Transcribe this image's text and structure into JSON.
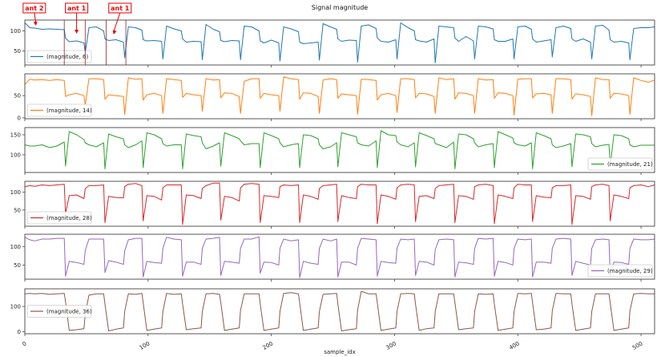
{
  "chart_data": {
    "type": "line",
    "title": "Signal magnitude",
    "xlabel": "sample_idx",
    "xlim": [
      0,
      511
    ],
    "xticks": [
      0,
      100,
      200,
      300,
      400,
      500
    ],
    "grid": false,
    "x": [
      0,
      4,
      8,
      14,
      20,
      26,
      32,
      33,
      36,
      42,
      48,
      49,
      52,
      58,
      64,
      65,
      68,
      74,
      80,
      81,
      84,
      90,
      95,
      96,
      99,
      105,
      111,
      112,
      115,
      121,
      127,
      128,
      131,
      137,
      143,
      144,
      147,
      153,
      158,
      159,
      162,
      168,
      174,
      175,
      178,
      184,
      190,
      191,
      194,
      200,
      206,
      207,
      210,
      216,
      222,
      223,
      226,
      232,
      238,
      239,
      242,
      248,
      253,
      254,
      257,
      263,
      269,
      270,
      273,
      279,
      285,
      286,
      289,
      295,
      301,
      302,
      305,
      311,
      316,
      317,
      320,
      326,
      332,
      333,
      336,
      342,
      348,
      349,
      352,
      358,
      364,
      365,
      368,
      374,
      380,
      381,
      384,
      390,
      396,
      397,
      400,
      406,
      411,
      412,
      415,
      421,
      427,
      428,
      431,
      437,
      443,
      444,
      447,
      453,
      459,
      460,
      463,
      469,
      474,
      475,
      478,
      484,
      490,
      491,
      494,
      500,
      506,
      511
    ],
    "panels": [
      {
        "name": "(magnitude, 6)",
        "color": "#1f77b4",
        "ylim": [
          15,
          127
        ],
        "yticks": [
          50,
          100
        ],
        "legend": "lower-left",
        "values": [
          120,
          108,
          107,
          104,
          105,
          104,
          103,
          82,
          73,
          75,
          70,
          45,
          108,
          110,
          100,
          80,
          76,
          78,
          72,
          33,
          110,
          108,
          102,
          78,
          75,
          76,
          74,
          30,
          112,
          105,
          100,
          80,
          72,
          74,
          73,
          28,
          116,
          104,
          98,
          76,
          73,
          76,
          75,
          28,
          112,
          110,
          100,
          75,
          70,
          77,
          70,
          25,
          110,
          105,
          98,
          72,
          68,
          70,
          72,
          27,
          118,
          110,
          104,
          80,
          74,
          77,
          76,
          22,
          112,
          115,
          106,
          82,
          74,
          72,
          78,
          30,
          120,
          108,
          100,
          78,
          75,
          72,
          80,
          20,
          112,
          110,
          108,
          82,
          74,
          86,
          75,
          30,
          112,
          110,
          105,
          78,
          74,
          74,
          80,
          30,
          110,
          112,
          104,
          80,
          72,
          75,
          78,
          35,
          108,
          112,
          106,
          80,
          74,
          80,
          72,
          30,
          112,
          114,
          102,
          78,
          72,
          74,
          70,
          28,
          106,
          108,
          108,
          110
        ]
      },
      {
        "name": "(magnitude, 14)",
        "color": "#ff7f0e",
        "ylim": [
          -2,
          99
        ],
        "yticks": [
          0,
          50
        ],
        "legend": "lower-left",
        "values": [
          75,
          87,
          85,
          86,
          84,
          86,
          84,
          48,
          52,
          55,
          50,
          28,
          88,
          88,
          86,
          42,
          52,
          50,
          48,
          7,
          90,
          87,
          88,
          40,
          52,
          55,
          50,
          10,
          88,
          86,
          84,
          46,
          55,
          52,
          50,
          15,
          88,
          85,
          86,
          45,
          56,
          55,
          48,
          10,
          82,
          88,
          88,
          44,
          55,
          52,
          50,
          15,
          92,
          88,
          86,
          42,
          56,
          55,
          48,
          10,
          85,
          88,
          86,
          44,
          54,
          52,
          50,
          8,
          87,
          86,
          84,
          40,
          52,
          55,
          50,
          12,
          88,
          88,
          86,
          45,
          55,
          54,
          48,
          10,
          90,
          86,
          88,
          42,
          56,
          55,
          50,
          10,
          88,
          85,
          86,
          44,
          56,
          55,
          50,
          6,
          87,
          88,
          88,
          45,
          54,
          55,
          52,
          10,
          88,
          88,
          86,
          42,
          54,
          52,
          48,
          5,
          90,
          86,
          86,
          44,
          55,
          54,
          50,
          8,
          90,
          84,
          80,
          85
        ]
      },
      {
        "name": "(magnitude, 21)",
        "color": "#2ca02c",
        "ylim": [
          56,
          168
        ],
        "yticks": [
          100,
          150
        ],
        "legend": "lower-right",
        "values": [
          125,
          122,
          122,
          125,
          118,
          122,
          132,
          72,
          158,
          150,
          138,
          130,
          125,
          120,
          130,
          65,
          152,
          145,
          140,
          125,
          118,
          125,
          135,
          68,
          155,
          150,
          140,
          128,
          122,
          125,
          125,
          65,
          152,
          148,
          145,
          130,
          115,
          122,
          130,
          72,
          155,
          148,
          140,
          135,
          125,
          128,
          128,
          68,
          155,
          148,
          140,
          130,
          120,
          125,
          128,
          68,
          150,
          148,
          140,
          125,
          115,
          120,
          130,
          70,
          155,
          150,
          145,
          130,
          125,
          122,
          135,
          68,
          160,
          150,
          148,
          132,
          125,
          120,
          130,
          70,
          155,
          148,
          140,
          128,
          125,
          118,
          132,
          65,
          152,
          150,
          140,
          130,
          120,
          125,
          128,
          68,
          158,
          150,
          142,
          130,
          125,
          122,
          130,
          65,
          155,
          148,
          140,
          125,
          118,
          122,
          128,
          70,
          152,
          150,
          145,
          128,
          120,
          124,
          126,
          72,
          150,
          148,
          140,
          125,
          120,
          124,
          124,
          124
        ]
      },
      {
        "name": "(magnitude, 28)",
        "color": "#d62728",
        "ylim": [
          5,
          130
        ],
        "yticks": [
          50,
          100
        ],
        "legend": "lower-left",
        "values": [
          115,
          118,
          116,
          120,
          118,
          120,
          122,
          40,
          90,
          92,
          82,
          110,
          118,
          118,
          120,
          15,
          88,
          85,
          84,
          115,
          122,
          124,
          118,
          20,
          90,
          88,
          78,
          112,
          120,
          120,
          120,
          10,
          92,
          90,
          82,
          110,
          118,
          125,
          125,
          22,
          88,
          85,
          75,
          112,
          122,
          124,
          122,
          15,
          90,
          88,
          85,
          115,
          120,
          118,
          120,
          15,
          92,
          88,
          80,
          110,
          118,
          120,
          122,
          18,
          90,
          85,
          82,
          115,
          122,
          120,
          120,
          12,
          92,
          88,
          80,
          112,
          120,
          122,
          120,
          18,
          88,
          90,
          82,
          110,
          118,
          120,
          122,
          15,
          90,
          88,
          80,
          115,
          120,
          122,
          118,
          12,
          92,
          88,
          82,
          112,
          122,
          120,
          120,
          18,
          90,
          86,
          84,
          112,
          118,
          118,
          120,
          10,
          90,
          88,
          80,
          115,
          120,
          122,
          118,
          20,
          92,
          88,
          82,
          112,
          118,
          120,
          115,
          120
        ]
      },
      {
        "name": "(magnitude, 29)",
        "color": "#9467bd",
        "ylim": [
          12,
          133
        ],
        "yticks": [
          50,
          100
        ],
        "legend": "lower-right",
        "values": [
          125,
          118,
          115,
          120,
          120,
          122,
          122,
          20,
          60,
          57,
          52,
          90,
          120,
          120,
          120,
          30,
          62,
          58,
          52,
          88,
          118,
          122,
          122,
          18,
          60,
          57,
          55,
          95,
          125,
          120,
          118,
          20,
          58,
          58,
          52,
          95,
          120,
          122,
          125,
          22,
          60,
          58,
          55,
          95,
          120,
          120,
          126,
          28,
          58,
          57,
          50,
          95,
          120,
          115,
          118,
          16,
          60,
          55,
          52,
          95,
          120,
          115,
          120,
          18,
          58,
          58,
          50,
          95,
          122,
          120,
          118,
          20,
          60,
          57,
          55,
          95,
          120,
          118,
          120,
          22,
          60,
          58,
          50,
          92,
          118,
          120,
          118,
          18,
          58,
          56,
          52,
          95,
          122,
          120,
          122,
          20,
          60,
          57,
          50,
          95,
          120,
          118,
          120,
          18,
          58,
          58,
          55,
          95,
          120,
          122,
          120,
          22,
          60,
          55,
          50,
          95,
          118,
          120,
          118,
          20,
          58,
          57,
          52,
          95,
          120,
          118,
          118,
          120
        ]
      },
      {
        "name": "(magnitude, 36)",
        "color": "#8c564b",
        "ylim": [
          -8,
          170
        ],
        "yticks": [
          0,
          100
        ],
        "legend": "center-left",
        "values": [
          150,
          152,
          150,
          152,
          148,
          150,
          152,
          120,
          5,
          8,
          12,
          70,
          145,
          150,
          150,
          110,
          3,
          10,
          15,
          80,
          150,
          148,
          152,
          115,
          5,
          10,
          15,
          80,
          152,
          148,
          150,
          110,
          8,
          12,
          15,
          80,
          150,
          152,
          148,
          115,
          5,
          10,
          15,
          85,
          150,
          150,
          150,
          110,
          5,
          10,
          15,
          80,
          152,
          155,
          150,
          115,
          5,
          10,
          15,
          80,
          148,
          150,
          152,
          110,
          3,
          8,
          12,
          85,
          160,
          150,
          150,
          115,
          5,
          10,
          15,
          80,
          150,
          152,
          150,
          110,
          5,
          12,
          15,
          80,
          150,
          150,
          150,
          115,
          8,
          12,
          15,
          80,
          150,
          148,
          150,
          110,
          5,
          10,
          15,
          80,
          152,
          150,
          152,
          115,
          8,
          10,
          15,
          82,
          152,
          150,
          150,
          110,
          5,
          10,
          15,
          80,
          150,
          150,
          150,
          115,
          5,
          10,
          15,
          82,
          150,
          152,
          150,
          150
        ]
      }
    ],
    "annotations": [
      {
        "text": "ant 2",
        "x": 9,
        "y": 113
      },
      {
        "text": "ant 1",
        "x": 42,
        "y": 93
      },
      {
        "text": "ant 1",
        "x": 72,
        "y": 91
      }
    ],
    "vlines": [
      32,
      49,
      66,
      82
    ],
    "annotation_color": "#e00000",
    "vline_color": "#8b1a1a"
  }
}
